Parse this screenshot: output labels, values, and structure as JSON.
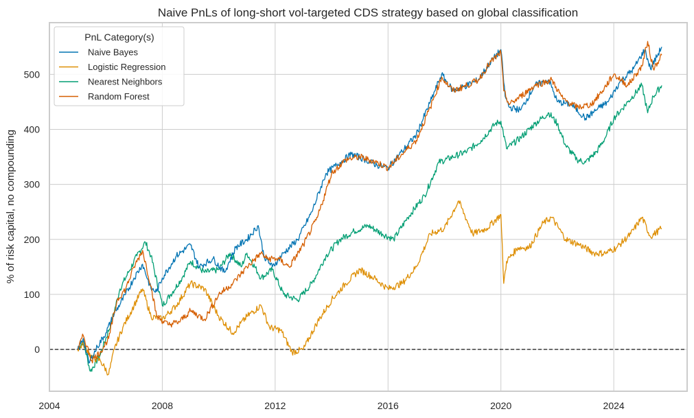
{
  "chart_data": {
    "type": "line",
    "title": "Naive PnLs of long-short vol-targeted CDS strategy based on global classification",
    "xlabel": "",
    "ylabel": "% of risk capital, no compounding",
    "xlim": [
      2004,
      2026.6
    ],
    "ylim": [
      -76,
      594
    ],
    "x_ticks": [
      2004,
      2008,
      2012,
      2016,
      2020,
      2024
    ],
    "x_tick_labels": [
      "2004",
      "2008",
      "2012",
      "2016",
      "2020",
      "2024"
    ],
    "y_ticks": [
      0,
      100,
      200,
      300,
      400,
      500
    ],
    "y_tick_labels": [
      "0",
      "100",
      "200",
      "300",
      "400",
      "500"
    ],
    "grid": true,
    "reference_line": {
      "y": 0,
      "style": "dashed",
      "color": "#000000"
    },
    "legend": {
      "title": "PnL Category(s)",
      "position": "top-left",
      "entries": [
        "Naive Bayes",
        "Logistic Regression",
        "Nearest Neighbors",
        "Random Forest"
      ]
    },
    "series": [
      {
        "name": "Naive Bayes",
        "color": "#0173b2",
        "x": [
          2005.0,
          2005.2,
          2005.4,
          2005.7,
          2006.0,
          2006.3,
          2006.7,
          2007.0,
          2007.3,
          2007.6,
          2007.8,
          2008.0,
          2008.5,
          2009.0,
          2009.3,
          2009.8,
          2010.2,
          2010.6,
          2011.0,
          2011.4,
          2011.6,
          2011.9,
          2012.3,
          2012.8,
          2013.3,
          2013.8,
          2014.3,
          2014.7,
          2015.2,
          2015.6,
          2016.0,
          2016.5,
          2017.0,
          2017.5,
          2017.9,
          2018.3,
          2018.8,
          2019.2,
          2019.6,
          2020.0,
          2020.15,
          2020.3,
          2020.7,
          2021.2,
          2021.7,
          2022.0,
          2022.5,
          2023.0,
          2023.5,
          2023.8,
          2024.2,
          2024.7,
          2025.1,
          2025.3,
          2025.7
        ],
        "y": [
          0,
          20,
          -25,
          5,
          30,
          65,
          100,
          130,
          155,
          110,
          105,
          130,
          170,
          190,
          150,
          165,
          140,
          185,
          200,
          225,
          170,
          150,
          175,
          200,
          250,
          320,
          340,
          355,
          345,
          335,
          330,
          360,
          390,
          450,
          500,
          470,
          480,
          490,
          520,
          545,
          460,
          440,
          435,
          480,
          490,
          450,
          445,
          420,
          440,
          450,
          485,
          510,
          545,
          510,
          550
        ]
      },
      {
        "name": "Logistic Regression",
        "color": "#de8f05",
        "x": [
          2005.0,
          2005.2,
          2005.5,
          2005.8,
          2006.1,
          2006.3,
          2006.6,
          2007.0,
          2007.3,
          2007.6,
          2008.0,
          2008.5,
          2009.0,
          2009.5,
          2010.0,
          2010.5,
          2011.0,
          2011.5,
          2011.8,
          2012.2,
          2012.6,
          2013.0,
          2013.5,
          2014.0,
          2014.5,
          2015.0,
          2015.5,
          2016.0,
          2016.5,
          2017.0,
          2017.5,
          2018.0,
          2018.5,
          2019.0,
          2019.5,
          2020.0,
          2020.1,
          2020.2,
          2020.6,
          2021.0,
          2021.5,
          2021.8,
          2022.3,
          2022.8,
          2023.3,
          2023.7,
          2024.1,
          2024.6,
          2025.0,
          2025.3,
          2025.7
        ],
        "y": [
          0,
          10,
          -15,
          -20,
          -45,
          0,
          40,
          80,
          110,
          60,
          55,
          80,
          120,
          110,
          60,
          30,
          60,
          80,
          40,
          35,
          -5,
          0,
          50,
          90,
          120,
          145,
          130,
          110,
          120,
          150,
          210,
          220,
          270,
          210,
          220,
          245,
          120,
          160,
          185,
          185,
          230,
          240,
          200,
          190,
          175,
          175,
          185,
          210,
          240,
          205,
          220
        ]
      },
      {
        "name": "Nearest Neighbors",
        "color": "#029e73",
        "x": [
          2005.0,
          2005.2,
          2005.45,
          2005.8,
          2006.2,
          2006.5,
          2006.8,
          2007.1,
          2007.4,
          2007.6,
          2008.0,
          2008.3,
          2008.7,
          2009.0,
          2009.5,
          2010.0,
          2010.4,
          2010.8,
          2011.0,
          2011.5,
          2011.9,
          2012.3,
          2012.8,
          2013.3,
          2013.8,
          2014.3,
          2014.8,
          2015.3,
          2015.8,
          2016.2,
          2016.7,
          2017.3,
          2017.8,
          2018.3,
          2018.8,
          2019.3,
          2019.8,
          2020.0,
          2020.2,
          2020.7,
          2021.2,
          2021.7,
          2022.0,
          2022.3,
          2022.7,
          2023.0,
          2023.4,
          2023.7,
          2024.0,
          2024.5,
          2025.0,
          2025.2,
          2025.4,
          2025.7
        ],
        "y": [
          0,
          15,
          -40,
          -10,
          50,
          110,
          140,
          170,
          195,
          170,
          80,
          100,
          130,
          160,
          140,
          145,
          175,
          150,
          175,
          130,
          145,
          100,
          90,
          120,
          170,
          200,
          215,
          225,
          210,
          200,
          240,
          280,
          340,
          350,
          360,
          380,
          410,
          415,
          365,
          385,
          410,
          430,
          410,
          370,
          345,
          340,
          360,
          385,
          420,
          450,
          480,
          430,
          460,
          480
        ]
      },
      {
        "name": "Random Forest",
        "color": "#d55e00",
        "x": [
          2005.0,
          2005.2,
          2005.5,
          2005.8,
          2006.1,
          2006.4,
          2006.7,
          2007.0,
          2007.3,
          2007.6,
          2007.8,
          2008.2,
          2008.6,
          2009.0,
          2009.5,
          2010.0,
          2010.5,
          2011.0,
          2011.5,
          2011.7,
          2012.1,
          2012.5,
          2013.0,
          2013.5,
          2014.0,
          2014.5,
          2015.0,
          2015.6,
          2016.0,
          2016.5,
          2017.0,
          2017.5,
          2017.9,
          2018.3,
          2018.8,
          2019.2,
          2019.6,
          2020.0,
          2020.1,
          2020.3,
          2020.7,
          2021.2,
          2021.8,
          2022.2,
          2022.7,
          2023.2,
          2023.6,
          2024.0,
          2024.5,
          2025.0,
          2025.2,
          2025.4,
          2025.7
        ],
        "y": [
          0,
          25,
          -20,
          -5,
          20,
          90,
          110,
          150,
          180,
          115,
          60,
          45,
          50,
          70,
          55,
          100,
          120,
          150,
          175,
          165,
          165,
          150,
          190,
          240,
          320,
          345,
          350,
          340,
          330,
          355,
          380,
          440,
          495,
          470,
          480,
          490,
          520,
          540,
          470,
          445,
          460,
          480,
          490,
          455,
          440,
          445,
          470,
          500,
          480,
          515,
          560,
          510,
          535
        ]
      }
    ]
  }
}
